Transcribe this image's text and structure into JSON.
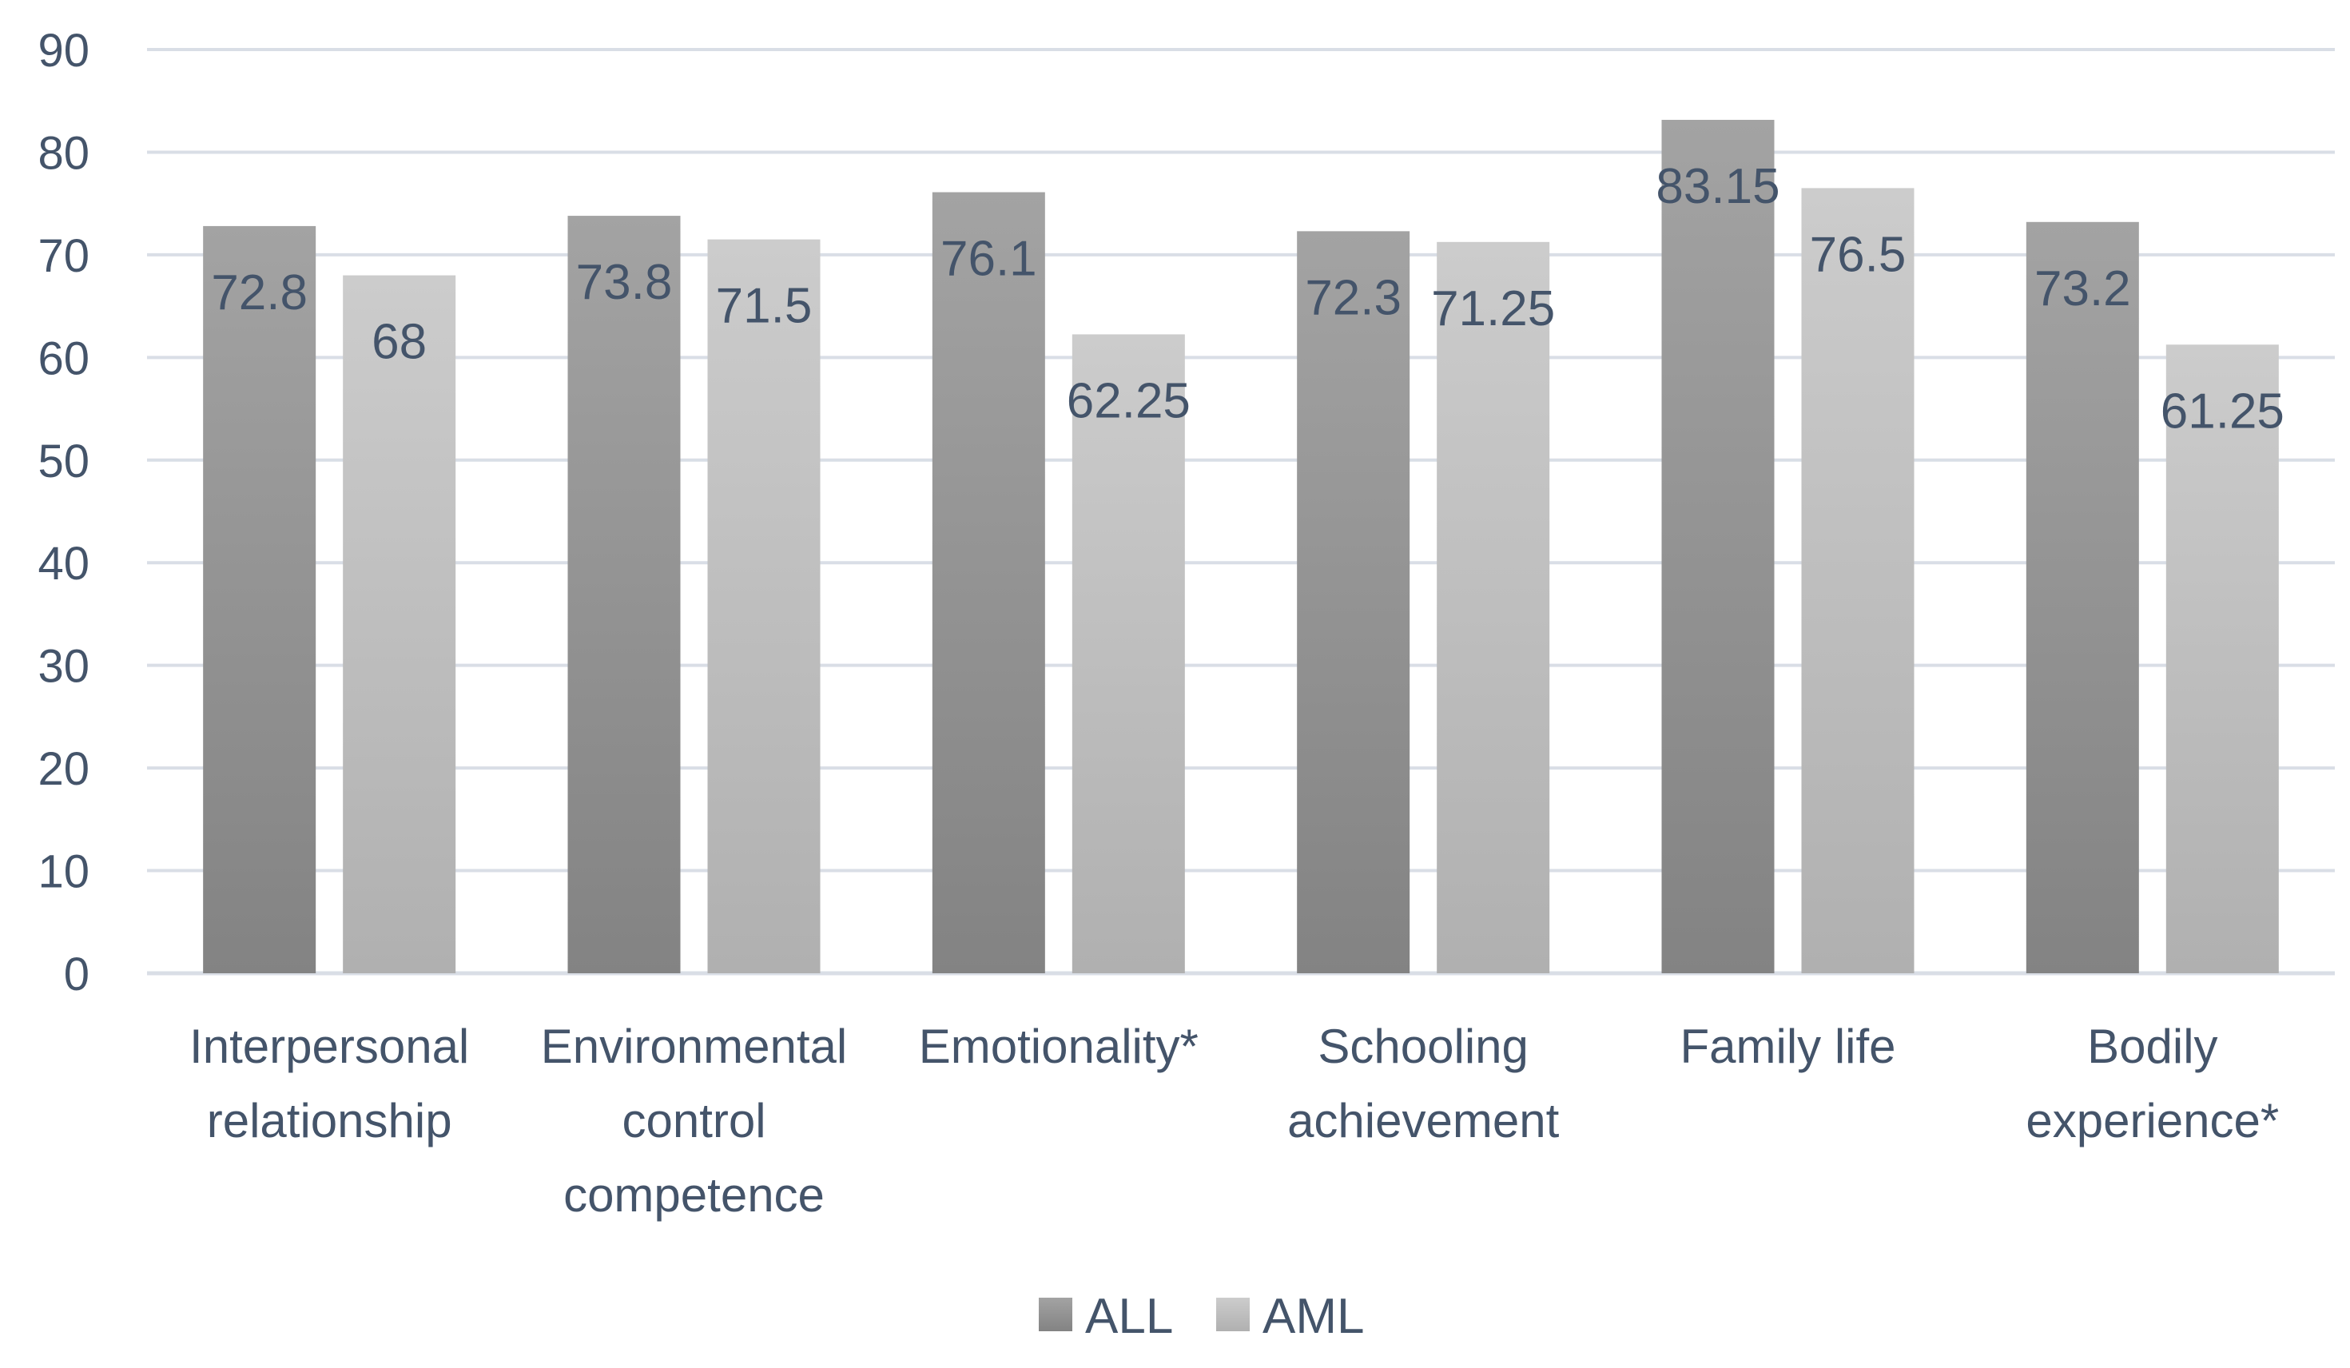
{
  "chart_data": {
    "type": "bar",
    "title": "",
    "xlabel": "",
    "ylabel": "",
    "ylim": [
      0,
      90
    ],
    "yticks": [
      0,
      10,
      20,
      30,
      40,
      50,
      60,
      70,
      80,
      90
    ],
    "grid": true,
    "legend_position": "bottom",
    "categories": [
      [
        "Interpersonal",
        "relationship"
      ],
      [
        "Environmental",
        "control",
        "competence"
      ],
      [
        "Emotionality*"
      ],
      [
        "Schooling",
        "achievement"
      ],
      [
        "Family life"
      ],
      [
        "Bodily",
        "experience*"
      ]
    ],
    "series": [
      {
        "name": "ALL",
        "values": [
          72.8,
          73.8,
          76.1,
          72.3,
          83.15,
          73.2
        ],
        "labels": [
          "72.8",
          "73.8",
          "76.1",
          "72.3",
          "83.15",
          "73.2"
        ],
        "color": "#8c8c8c",
        "color_top": "#a3a3a3",
        "color_bottom": "#838383"
      },
      {
        "name": "AML",
        "values": [
          68,
          71.5,
          62.25,
          71.25,
          76.5,
          61.25
        ],
        "labels": [
          "68",
          "71.5",
          "62.25",
          "71.25",
          "76.5",
          "61.25"
        ],
        "color": "#bdbdbd",
        "color_top": "#cccccc",
        "color_bottom": "#b0b0b0"
      }
    ]
  }
}
